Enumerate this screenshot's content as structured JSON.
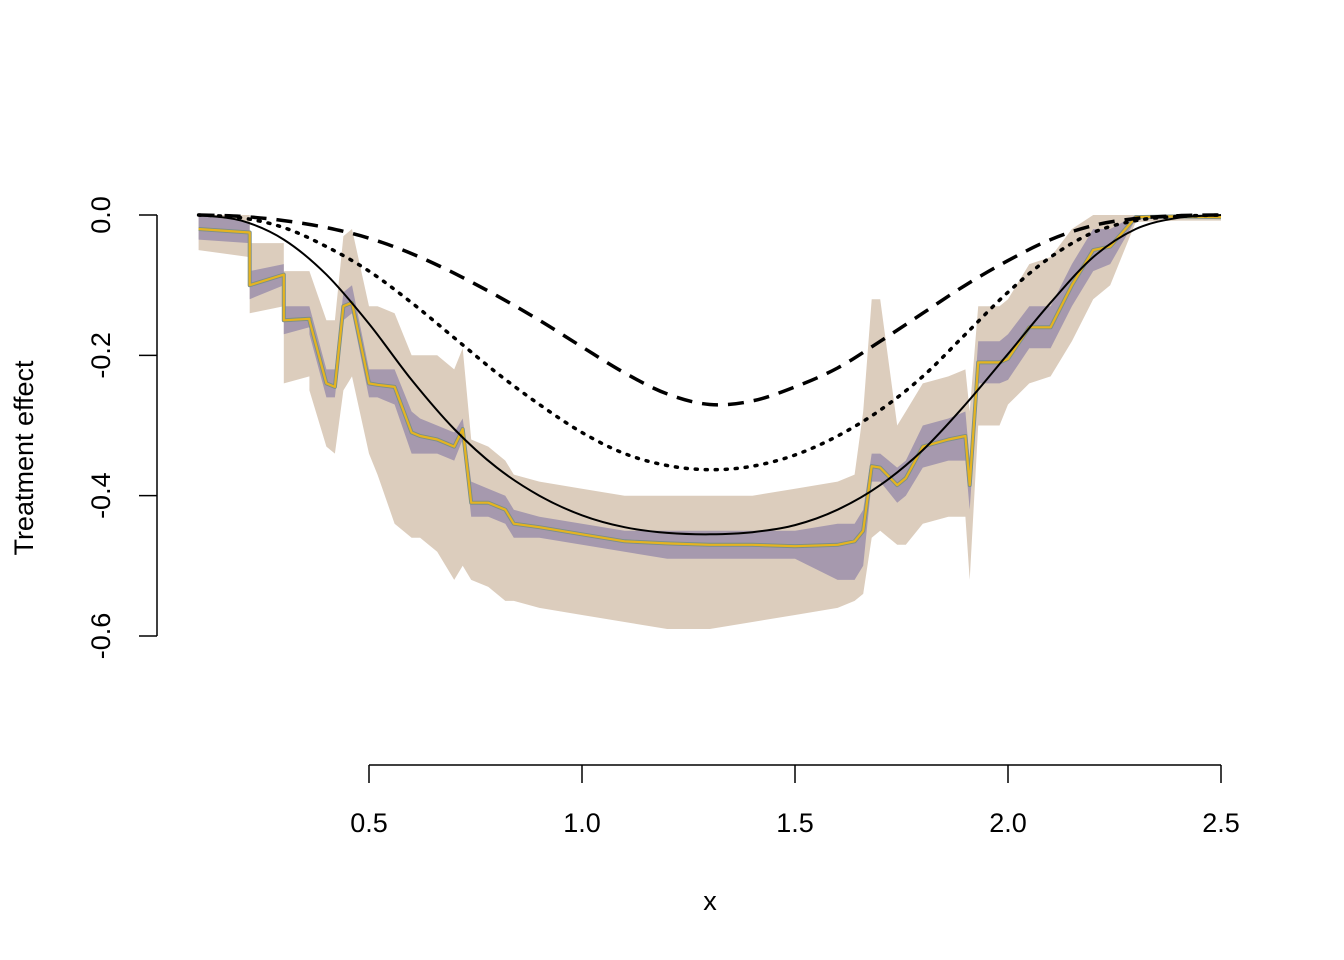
{
  "chart_data": {
    "type": "line",
    "title": "",
    "xlabel": "x",
    "ylabel": "Treatment effect",
    "xlim": [
      0.1,
      2.5
    ],
    "ylim": [
      -0.6,
      0.0
    ],
    "x_ticks": [
      0.5,
      1.0,
      1.5,
      2.0,
      2.5
    ],
    "x_tick_labels": [
      "0.5",
      "1.0",
      "1.5",
      "2.0",
      "2.5"
    ],
    "y_ticks": [
      0.0,
      -0.2,
      -0.4,
      -0.6
    ],
    "y_tick_labels": [
      "0.0",
      "-0.2",
      "-0.4",
      "-0.6"
    ],
    "grid": false,
    "legend": "none",
    "colors": {
      "outer_band": "#dccdbd",
      "inner_band": "#a699ae",
      "estimate": "#e5b420",
      "estimate_shadow": "#7a8f8a",
      "true_curves": "#000000"
    },
    "series": [
      {
        "style": "solid",
        "x": [
          0.1,
          0.2,
          0.3,
          0.4,
          0.5,
          0.6,
          0.7,
          0.8,
          0.9,
          1.0,
          1.1,
          1.2,
          1.3,
          1.4,
          1.5,
          1.6,
          1.7,
          1.8,
          1.9,
          2.0,
          2.1,
          2.2,
          2.3,
          2.4,
          2.5
        ],
        "y": [
          0.0,
          -0.008,
          -0.035,
          -0.085,
          -0.155,
          -0.235,
          -0.305,
          -0.36,
          -0.4,
          -0.428,
          -0.445,
          -0.453,
          -0.455,
          -0.452,
          -0.442,
          -0.42,
          -0.385,
          -0.335,
          -0.27,
          -0.198,
          -0.125,
          -0.06,
          -0.02,
          -0.004,
          0.0
        ]
      },
      {
        "style": "dotted",
        "x": [
          0.1,
          0.2,
          0.3,
          0.4,
          0.5,
          0.6,
          0.7,
          0.8,
          0.9,
          1.0,
          1.1,
          1.2,
          1.3,
          1.4,
          1.5,
          1.6,
          1.7,
          1.8,
          1.9,
          2.0,
          2.1,
          2.2,
          2.3,
          2.4,
          2.5
        ],
        "y": [
          0.0,
          -0.004,
          -0.018,
          -0.045,
          -0.08,
          -0.125,
          -0.175,
          -0.225,
          -0.27,
          -0.31,
          -0.34,
          -0.357,
          -0.363,
          -0.358,
          -0.342,
          -0.315,
          -0.278,
          -0.23,
          -0.17,
          -0.11,
          -0.06,
          -0.025,
          -0.008,
          -0.002,
          0.0
        ]
      },
      {
        "style": "dashed",
        "x": [
          0.1,
          0.2,
          0.3,
          0.4,
          0.5,
          0.6,
          0.7,
          0.8,
          0.9,
          1.0,
          1.1,
          1.2,
          1.3,
          1.4,
          1.5,
          1.6,
          1.7,
          1.8,
          1.9,
          2.0,
          2.1,
          2.2,
          2.3,
          2.4,
          2.5
        ],
        "y": [
          0.0,
          -0.002,
          -0.008,
          -0.018,
          -0.033,
          -0.055,
          -0.083,
          -0.115,
          -0.15,
          -0.188,
          -0.225,
          -0.255,
          -0.27,
          -0.265,
          -0.245,
          -0.218,
          -0.18,
          -0.14,
          -0.1,
          -0.065,
          -0.035,
          -0.015,
          -0.005,
          -0.001,
          0.0
        ]
      },
      {
        "style": "estimate-with-bands",
        "x": [
          0.1,
          0.22,
          0.22,
          0.3,
          0.3,
          0.36,
          0.36,
          0.4,
          0.42,
          0.44,
          0.46,
          0.5,
          0.52,
          0.56,
          0.6,
          0.62,
          0.66,
          0.7,
          0.72,
          0.74,
          0.78,
          0.82,
          0.84,
          0.9,
          1.0,
          1.1,
          1.2,
          1.3,
          1.4,
          1.5,
          1.6,
          1.64,
          1.66,
          1.68,
          1.7,
          1.74,
          1.76,
          1.8,
          1.86,
          1.9,
          1.91,
          1.93,
          1.98,
          2.0,
          2.05,
          2.1,
          2.15,
          2.2,
          2.24,
          2.3,
          2.4,
          2.5
        ],
        "y": [
          -0.02,
          -0.025,
          -0.1,
          -0.085,
          -0.15,
          -0.148,
          -0.15,
          -0.24,
          -0.245,
          -0.13,
          -0.125,
          -0.24,
          -0.242,
          -0.245,
          -0.31,
          -0.315,
          -0.32,
          -0.33,
          -0.305,
          -0.41,
          -0.41,
          -0.42,
          -0.44,
          -0.445,
          -0.455,
          -0.465,
          -0.468,
          -0.47,
          -0.47,
          -0.472,
          -0.47,
          -0.465,
          -0.45,
          -0.358,
          -0.36,
          -0.385,
          -0.375,
          -0.33,
          -0.32,
          -0.315,
          -0.385,
          -0.21,
          -0.21,
          -0.205,
          -0.16,
          -0.16,
          -0.1,
          -0.05,
          -0.045,
          -0.003,
          -0.002,
          -0.003
        ],
        "inner_lower": [
          -0.035,
          -0.04,
          -0.12,
          -0.1,
          -0.17,
          -0.16,
          -0.17,
          -0.26,
          -0.26,
          -0.15,
          -0.14,
          -0.26,
          -0.26,
          -0.27,
          -0.34,
          -0.34,
          -0.34,
          -0.35,
          -0.32,
          -0.43,
          -0.43,
          -0.44,
          -0.46,
          -0.46,
          -0.47,
          -0.48,
          -0.49,
          -0.49,
          -0.49,
          -0.49,
          -0.52,
          -0.52,
          -0.5,
          -0.38,
          -0.38,
          -0.41,
          -0.4,
          -0.36,
          -0.35,
          -0.35,
          -0.42,
          -0.24,
          -0.24,
          -0.235,
          -0.19,
          -0.19,
          -0.13,
          -0.08,
          -0.07,
          -0.006,
          -0.005,
          -0.005
        ],
        "inner_upper": [
          0.0,
          -0.01,
          -0.08,
          -0.07,
          -0.13,
          -0.13,
          -0.13,
          -0.22,
          -0.22,
          -0.11,
          -0.1,
          -0.22,
          -0.22,
          -0.22,
          -0.28,
          -0.29,
          -0.3,
          -0.31,
          -0.29,
          -0.38,
          -0.39,
          -0.4,
          -0.42,
          -0.43,
          -0.44,
          -0.45,
          -0.45,
          -0.45,
          -0.45,
          -0.45,
          -0.44,
          -0.44,
          -0.42,
          -0.34,
          -0.34,
          -0.36,
          -0.35,
          -0.3,
          -0.29,
          -0.28,
          -0.35,
          -0.18,
          -0.18,
          -0.17,
          -0.13,
          -0.13,
          -0.07,
          -0.02,
          -0.02,
          0.0,
          0.0,
          0.0
        ],
        "outer_lower": [
          -0.05,
          -0.06,
          -0.14,
          -0.13,
          -0.24,
          -0.23,
          -0.25,
          -0.33,
          -0.34,
          -0.25,
          -0.23,
          -0.34,
          -0.37,
          -0.44,
          -0.46,
          -0.46,
          -0.48,
          -0.52,
          -0.5,
          -0.52,
          -0.53,
          -0.55,
          -0.55,
          -0.56,
          -0.57,
          -0.58,
          -0.59,
          -0.59,
          -0.58,
          -0.57,
          -0.56,
          -0.55,
          -0.54,
          -0.46,
          -0.45,
          -0.47,
          -0.47,
          -0.44,
          -0.43,
          -0.43,
          -0.52,
          -0.3,
          -0.3,
          -0.27,
          -0.24,
          -0.23,
          -0.18,
          -0.12,
          -0.1,
          -0.01,
          -0.008,
          -0.008
        ],
        "outer_upper": [
          0.0,
          0.0,
          -0.04,
          -0.04,
          -0.08,
          -0.08,
          -0.08,
          -0.15,
          -0.15,
          -0.03,
          -0.02,
          -0.13,
          -0.13,
          -0.14,
          -0.2,
          -0.2,
          -0.2,
          -0.22,
          -0.19,
          -0.32,
          -0.33,
          -0.35,
          -0.37,
          -0.38,
          -0.39,
          -0.4,
          -0.4,
          -0.4,
          -0.4,
          -0.39,
          -0.38,
          -0.37,
          -0.28,
          -0.12,
          -0.12,
          -0.3,
          -0.28,
          -0.24,
          -0.23,
          -0.22,
          -0.28,
          -0.13,
          -0.13,
          -0.12,
          -0.07,
          -0.06,
          -0.02,
          0.0,
          0.0,
          0.0,
          0.0,
          0.0
        ]
      }
    ]
  }
}
